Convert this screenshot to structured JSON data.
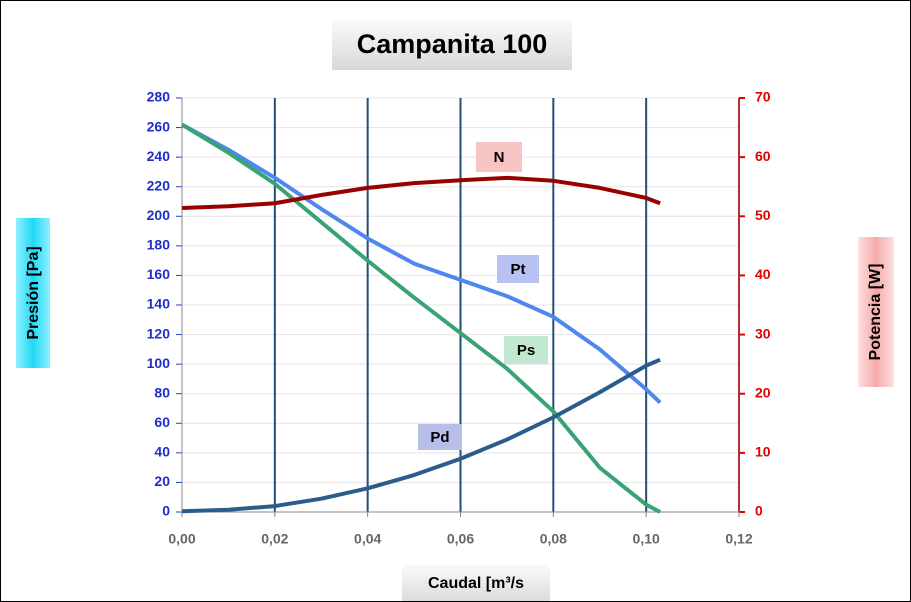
{
  "chart_data": {
    "type": "line",
    "title": "Campanita 100",
    "xlabel": "Caudal [m³/s",
    "ylabel": "Presión [Pa]",
    "y2label": "Potencia [W]",
    "xlim": [
      0,
      0.12
    ],
    "xticks": [
      {
        "value": 0,
        "label": "0,00"
      },
      {
        "value": 0.02,
        "label": "0,02"
      },
      {
        "value": 0.04,
        "label": "0,04"
      },
      {
        "value": 0.06,
        "label": "0,06"
      },
      {
        "value": 0.08,
        "label": "0,08"
      },
      {
        "value": 0.1,
        "label": "0,10"
      },
      {
        "value": 0.12,
        "label": "0,12"
      }
    ],
    "ylim": [
      0,
      280
    ],
    "yticks": [
      0,
      20,
      40,
      60,
      80,
      100,
      120,
      140,
      160,
      180,
      200,
      220,
      240,
      260,
      280
    ],
    "y2lim": [
      0,
      70
    ],
    "y2ticks": [
      0,
      10,
      20,
      30,
      40,
      50,
      60,
      70
    ],
    "x": [
      0,
      0.01,
      0.02,
      0.03,
      0.04,
      0.05,
      0.06,
      0.07,
      0.08,
      0.09,
      0.1,
      0.103
    ],
    "series": [
      {
        "name": "Pt",
        "color": "#4f86f0",
        "values": [
          262,
          245,
          226,
          205,
          185,
          168,
          157,
          146,
          132,
          110,
          83,
          74
        ]
      },
      {
        "name": "Ps",
        "color": "#3aa374",
        "values": [
          262,
          243,
          222,
          196,
          170,
          145,
          121,
          97,
          68,
          30,
          5,
          0
        ]
      },
      {
        "name": "Pd",
        "color": "#2b5d8c",
        "values": [
          0.5,
          1.5,
          4,
          9,
          16,
          25,
          36,
          49,
          64,
          81,
          99,
          103
        ]
      },
      {
        "name": "N",
        "color": "#990000",
        "axis": "y2",
        "values": [
          51.4,
          51.7,
          52.2,
          53.6,
          54.8,
          55.6,
          56.1,
          56.5,
          56,
          54.8,
          53.1,
          52.2
        ]
      }
    ]
  }
}
